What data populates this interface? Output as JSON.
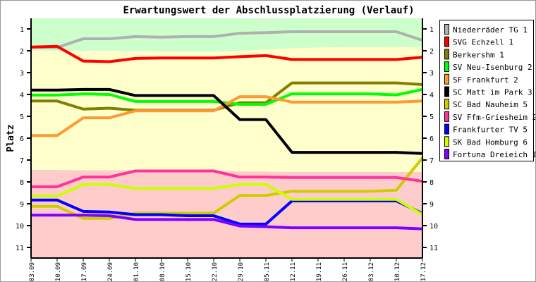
{
  "chart_data": {
    "type": "line",
    "title": "Erwartungswert der Abschlussplatzierung (Verlauf)",
    "ylabel": "Platz",
    "xlabel": "",
    "ylim": [
      11.5,
      0.5
    ],
    "y_inverted": true,
    "y_ticks": [
      1,
      2,
      3,
      4,
      5,
      6,
      7,
      8,
      9,
      10,
      11
    ],
    "categories": [
      "03.09",
      "10.09",
      "17.09",
      "24.09",
      "01.10",
      "08.10",
      "15.10",
      "22.10",
      "29.10",
      "05.11",
      "12.11",
      "19.11",
      "26.11",
      "03.12",
      "10.12",
      "17.12"
    ],
    "legend_position": "right",
    "zones": [
      {
        "color": "#ccffcc",
        "from": 0.5,
        "to_values": [
          2,
          2,
          2,
          2,
          2,
          2.03,
          2.05,
          2.05,
          2.0,
          1.95,
          1.88,
          1.85,
          1.83,
          1.83,
          1.83,
          1.83
        ]
      },
      {
        "color": "#ffffcc",
        "to_values": [
          7.45,
          7.45,
          7.47,
          7.47,
          7.48,
          7.48,
          7.5,
          7.5,
          7.52,
          7.53,
          7.55,
          7.55,
          7.55,
          7.55,
          7.55,
          7.55
        ]
      },
      {
        "color": "#ffcccc",
        "to": 11.5
      }
    ],
    "series": [
      {
        "name": "Niederräder TG 1",
        "color": "#b0b0b0",
        "values": [
          1.84,
          1.85,
          1.45,
          1.45,
          1.35,
          1.38,
          1.35,
          1.35,
          1.2,
          1.17,
          1.13,
          1.13,
          1.13,
          1.13,
          1.13,
          1.52
        ]
      },
      {
        "name": "SVG Echzell 1",
        "color": "#ff0000",
        "values": [
          1.83,
          1.8,
          2.47,
          2.5,
          2.35,
          2.33,
          2.33,
          2.33,
          2.27,
          2.22,
          2.4,
          2.4,
          2.4,
          2.4,
          2.4,
          2.3
        ]
      },
      {
        "name": "Berkershm 1",
        "color": "#808000",
        "values": [
          4.3,
          4.3,
          4.67,
          4.63,
          4.72,
          4.72,
          4.72,
          4.72,
          4.38,
          4.38,
          3.47,
          3.47,
          3.47,
          3.47,
          3.47,
          3.55
        ]
      },
      {
        "name": "SV Neu-Isenburg 2",
        "color": "#00ff00",
        "values": [
          4.03,
          4.03,
          3.97,
          4.0,
          4.32,
          4.32,
          4.32,
          4.32,
          4.45,
          4.45,
          3.97,
          3.97,
          3.97,
          3.97,
          4.02,
          3.77
        ]
      },
      {
        "name": "SF Frankfurt 2",
        "color": "#ff9933",
        "values": [
          5.88,
          5.88,
          5.07,
          5.07,
          4.75,
          4.75,
          4.75,
          4.75,
          4.1,
          4.1,
          4.35,
          4.35,
          4.35,
          4.35,
          4.35,
          4.3
        ]
      },
      {
        "name": "SC Matt im Park 3",
        "color": "#000000",
        "values": [
          3.8,
          3.8,
          3.77,
          3.77,
          4.05,
          4.05,
          4.05,
          4.05,
          5.15,
          5.15,
          6.65,
          6.65,
          6.65,
          6.65,
          6.65,
          6.7
        ]
      },
      {
        "name": "SC Bad Nauheim 5",
        "color": "#cccc00",
        "values": [
          9.12,
          9.12,
          9.67,
          9.67,
          9.43,
          9.43,
          9.43,
          9.43,
          8.62,
          8.62,
          8.43,
          8.43,
          8.43,
          8.43,
          8.38,
          6.9
        ]
      },
      {
        "name": "SV Ffm-Griesheim 2",
        "color": "#ff3399",
        "values": [
          8.22,
          8.22,
          7.78,
          7.78,
          7.5,
          7.5,
          7.5,
          7.5,
          7.78,
          7.78,
          7.8,
          7.8,
          7.8,
          7.8,
          7.8,
          7.97
        ]
      },
      {
        "name": "Frankfurter TV 5",
        "color": "#0000ff",
        "values": [
          8.83,
          8.83,
          9.35,
          9.38,
          9.5,
          9.5,
          9.55,
          9.55,
          9.93,
          9.93,
          8.87,
          8.87,
          8.87,
          8.87,
          8.87,
          9.45
        ]
      },
      {
        "name": "SK Bad Homburg 6",
        "color": "#ccff00",
        "values": [
          8.65,
          8.65,
          8.12,
          8.12,
          8.3,
          8.3,
          8.3,
          8.3,
          8.12,
          8.12,
          8.8,
          8.8,
          8.8,
          8.8,
          8.8,
          9.5
        ]
      },
      {
        "name": "Fortuna Dreieich 1",
        "color": "#8000ff",
        "values": [
          9.52,
          9.52,
          9.52,
          9.55,
          9.72,
          9.72,
          9.72,
          9.72,
          10.02,
          10.05,
          10.1,
          10.1,
          10.1,
          10.1,
          10.1,
          10.15
        ]
      }
    ]
  }
}
